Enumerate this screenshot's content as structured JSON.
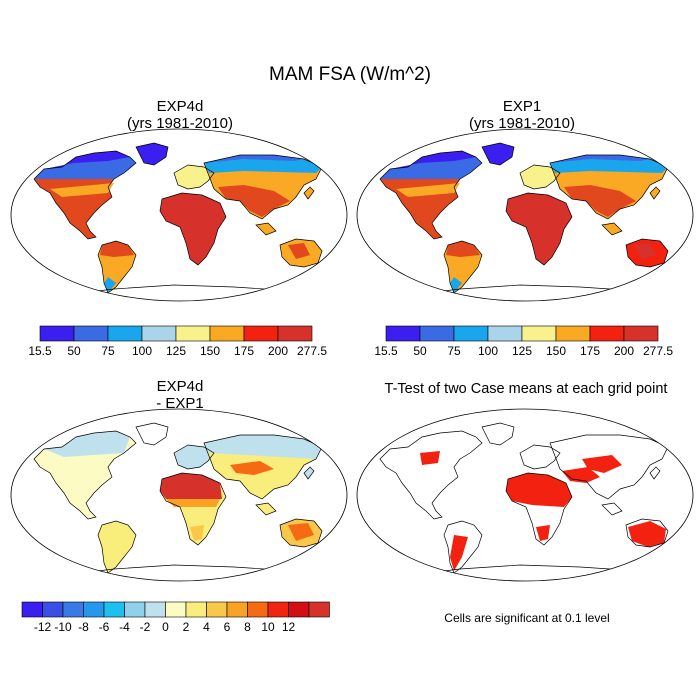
{
  "figure": {
    "title": "MAM FSA (W/m^2)"
  },
  "panels": [
    {
      "id": "exp4d",
      "title_line1": "EXP4d",
      "title_line2": "(yrs 1981-2010)"
    },
    {
      "id": "exp1",
      "title_line1": "EXP1",
      "title_line2": "(yrs 1981-2010)"
    },
    {
      "id": "diff",
      "title_line1": "EXP4d",
      "title_line2": "- EXP1"
    },
    {
      "id": "ttest",
      "title_line1": "T-Test of two Case means at each grid point",
      "title_line2": ""
    }
  ],
  "colorbars": {
    "absolute": {
      "colors": [
        "#3b1ef0",
        "#3a6ae4",
        "#1aa6ec",
        "#a9d4ea",
        "#f9f28c",
        "#f9a923",
        "#f3210f",
        "#d6322b"
      ],
      "labels": [
        "15.5",
        "50",
        "75",
        "100",
        "125",
        "150",
        "175",
        "200",
        "277.5"
      ]
    },
    "difference": {
      "colors": [
        "#3b1ef0",
        "#3a4fe4",
        "#3a7ae6",
        "#2598ee",
        "#1cc1f2",
        "#8fd0ea",
        "#bfe1ee",
        "#fdfbc4",
        "#f9ee7c",
        "#f9c84a",
        "#f9a223",
        "#f66a14",
        "#f0240f",
        "#d20f14",
        "#d6322b"
      ],
      "labels": [
        "-12",
        "-10",
        "-8",
        "-6",
        "-4",
        "-2",
        "0",
        "2",
        "4",
        "6",
        "8",
        "10",
        "12"
      ]
    }
  },
  "footnote": "Cells are significant at 0.1 level"
}
